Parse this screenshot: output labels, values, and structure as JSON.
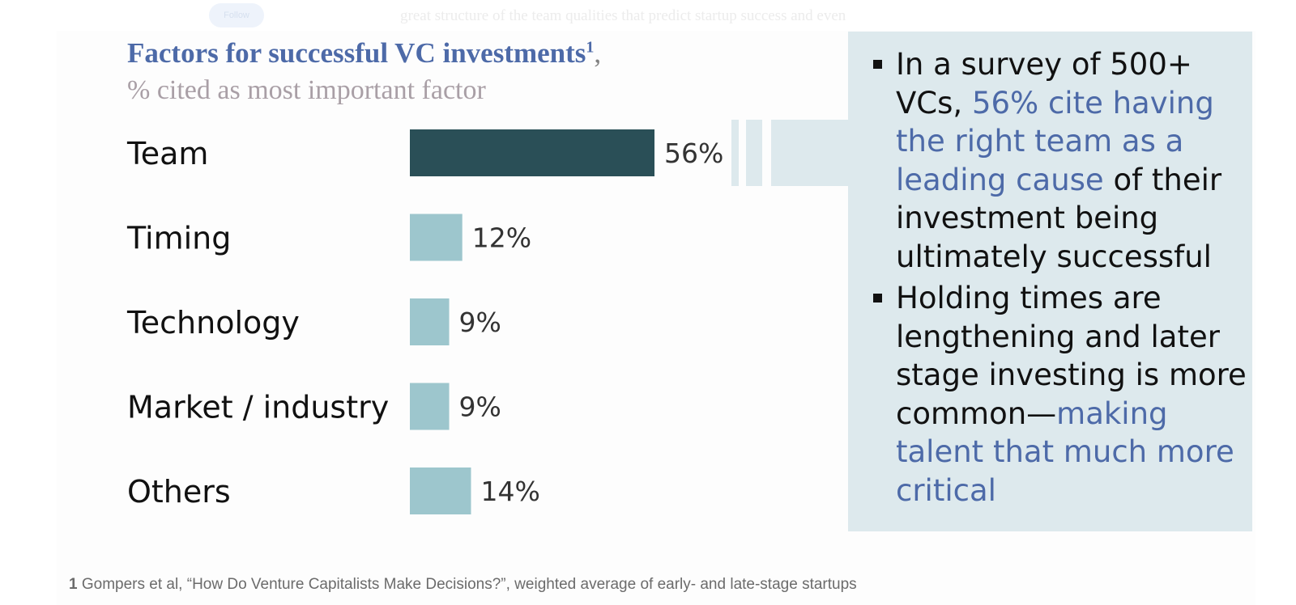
{
  "page": {
    "follow_label": "Follow",
    "bg_text": "great structure of the team qualities that predict startup success and even"
  },
  "chart_data": {
    "type": "bar",
    "orientation": "horizontal",
    "title": "Factors for successful VC investments",
    "title_superscript": "1",
    "title_suffix": ",",
    "subtitle": "% cited as most important factor",
    "categories": [
      "Team",
      "Timing",
      "Technology",
      "Market / industry",
      "Others"
    ],
    "values": [
      56,
      12,
      9,
      9,
      14
    ],
    "value_labels": [
      "56%",
      "12%",
      "9%",
      "9%",
      "14%"
    ],
    "unit": "%",
    "colors": [
      "#2a4f57",
      "#9dc6cd",
      "#9dc6cd",
      "#9dc6cd",
      "#9dc6cd"
    ],
    "grid": false,
    "legend": "none"
  },
  "callout": {
    "b1_pre": "In a survey of 500+ VCs, ",
    "b1_highlight": "56% cite having the right team as a leading cause",
    "b1_post": " of their investment being ultimately successful",
    "b2_pre": "Holding times are lengthening and later stage investing is more common—",
    "b2_highlight": "making talent that much more critical"
  },
  "footnote": {
    "number": "1",
    "text": "Gompers et al, “How Do Venture Capitalists Make Decisions?”, weighted average of early- and late-stage startups"
  },
  "colors": {
    "accent_blue": "#4d6aa8",
    "highlight_bar": "#2a4f57",
    "other_bar": "#9dc6cd",
    "callout_bg": "#dde9ed",
    "subtitle_gray": "#a99fa6"
  }
}
